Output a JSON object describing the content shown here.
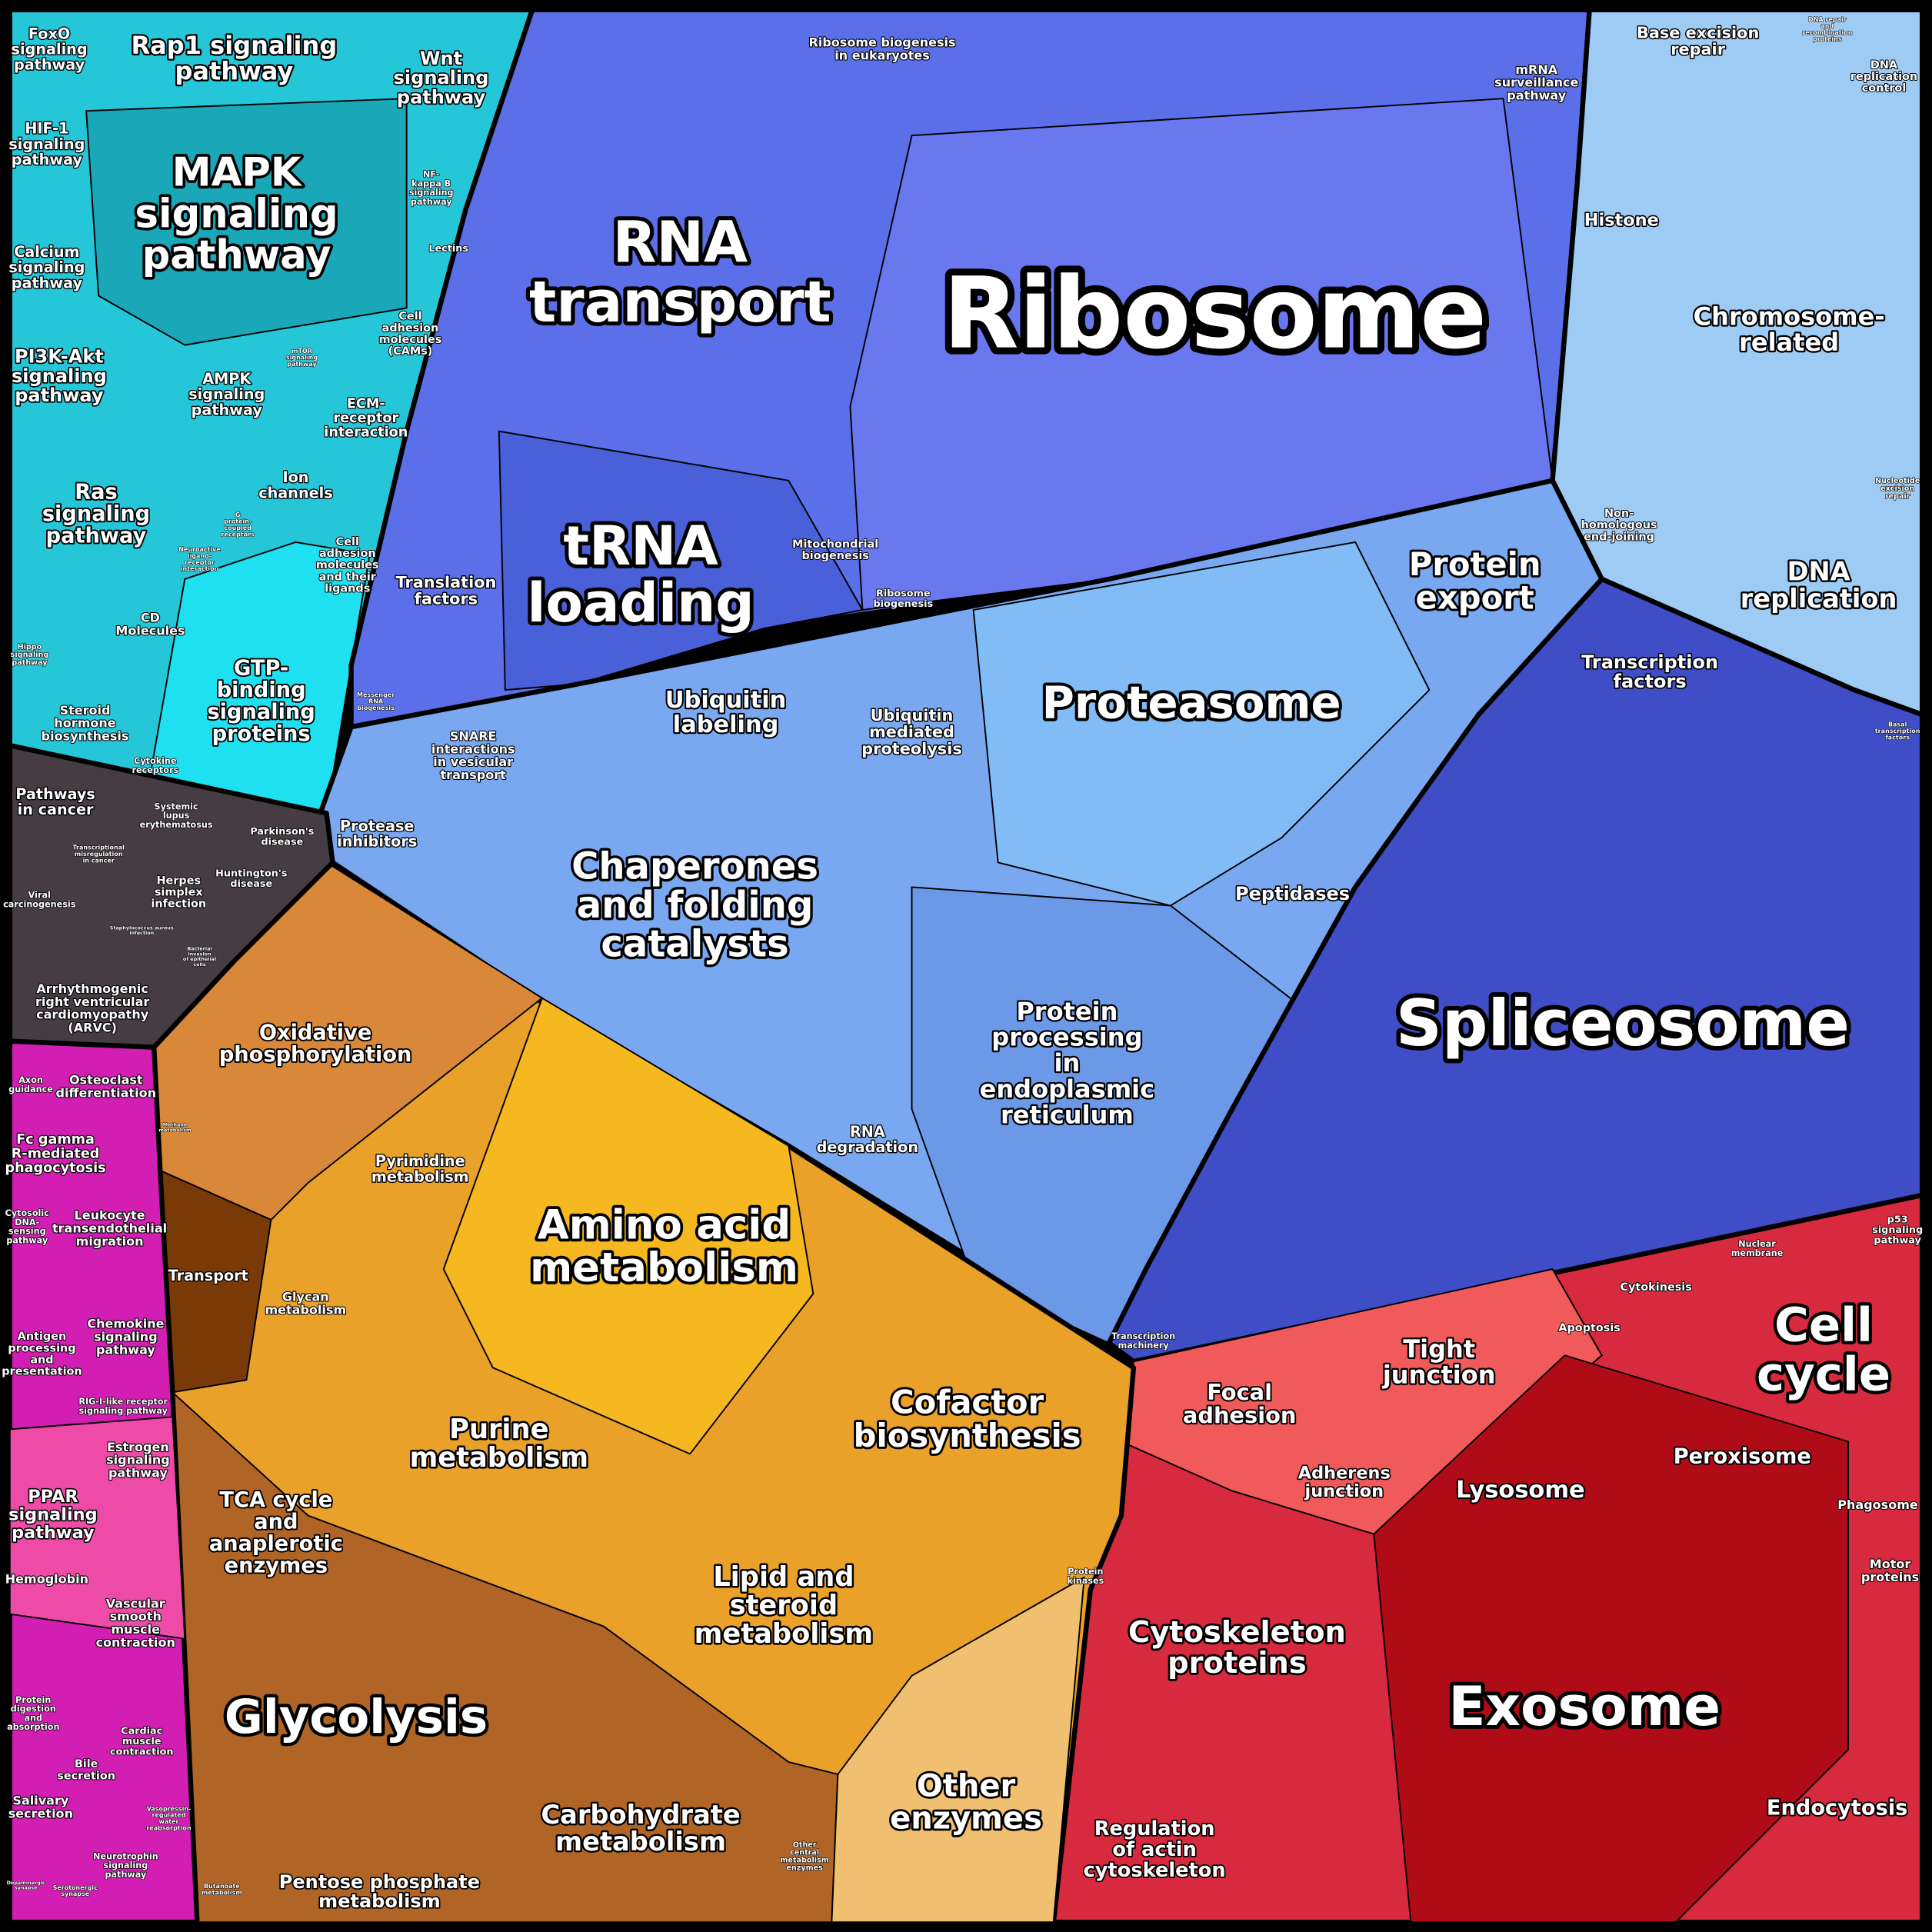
{
  "regions": [
    {
      "lines": [
        "FoxO",
        "signaling",
        "pathway"
      ]
    },
    {
      "lines": [
        "Rap1 signaling",
        "pathway"
      ]
    },
    {
      "lines": [
        "Wnt",
        "signaling",
        "pathway"
      ]
    },
    {
      "lines": [
        "HIF-1",
        "signaling",
        "pathway"
      ]
    },
    {
      "lines": [
        "MAPK",
        "signaling",
        "pathway"
      ]
    },
    {
      "lines": [
        "NF-",
        "kappa B",
        "signaling",
        "pathway"
      ]
    },
    {
      "lines": [
        "Calcium",
        "signaling",
        "pathway"
      ]
    },
    {
      "lines": [
        "Lectins"
      ]
    },
    {
      "lines": [
        "Cell",
        "adhesion",
        "molecules",
        "(CAMs)"
      ]
    },
    {
      "lines": [
        "PI3K-Akt",
        "signaling",
        "pathway"
      ]
    },
    {
      "lines": [
        "AMPK",
        "signaling",
        "pathway"
      ]
    },
    {
      "lines": [
        "mTOR",
        "signaling",
        "pathway"
      ]
    },
    {
      "lines": [
        "ECM-",
        "receptor",
        "interaction"
      ]
    },
    {
      "lines": [
        "Ras",
        "signaling",
        "pathway"
      ]
    },
    {
      "lines": [
        "Ion",
        "channels"
      ]
    },
    {
      "lines": [
        "G",
        "protein-",
        "coupled",
        "receptors"
      ]
    },
    {
      "lines": [
        "Neuroactive",
        "ligand-",
        "receptor",
        "interaction"
      ]
    },
    {
      "lines": [
        "Cell",
        "adhesion",
        "molecules",
        "and their",
        "ligands"
      ]
    },
    {
      "lines": [
        "CD",
        "Molecules"
      ]
    },
    {
      "lines": [
        "GTP-",
        "binding",
        "signaling",
        "proteins"
      ]
    },
    {
      "lines": [
        "Hippo",
        "signaling",
        "pathway"
      ]
    },
    {
      "lines": [
        "Steroid",
        "hormone",
        "biosynthesis"
      ]
    },
    {
      "lines": [
        "Cytokine",
        "receptors"
      ]
    },
    {
      "lines": [
        "Pathways",
        "in cancer"
      ]
    },
    {
      "lines": [
        "Systemic",
        "lupus",
        "erythematosus"
      ]
    },
    {
      "lines": [
        "Transcriptional",
        "misregulation",
        "in cancer"
      ]
    },
    {
      "lines": [
        "Parkinson's",
        "disease"
      ]
    },
    {
      "lines": [
        "Viral",
        "carcinogenesis"
      ]
    },
    {
      "lines": [
        "Herpes",
        "simplex",
        "infection"
      ]
    },
    {
      "lines": [
        "Huntington's",
        "disease"
      ]
    },
    {
      "lines": [
        "Staphylococcus aureus",
        "infection"
      ]
    },
    {
      "lines": [
        "Bacterial",
        "invasion",
        "of epithelial",
        "cells"
      ]
    },
    {
      "lines": [
        "Arrhythmogenic",
        "right ventricular",
        "cardiomyopathy",
        "(ARVC)"
      ]
    },
    {
      "lines": [
        "Axon",
        "guidance"
      ]
    },
    {
      "lines": [
        "Osteoclast",
        "differentiation"
      ]
    },
    {
      "lines": [
        "Fc gamma",
        "R-mediated",
        "phagocytosis"
      ]
    },
    {
      "lines": [
        "Cytosolic",
        "DNA-",
        "sensing",
        "pathway"
      ]
    },
    {
      "lines": [
        "Leukocyte",
        "transendothelial",
        "migration"
      ]
    },
    {
      "lines": [
        "Antigen",
        "processing",
        "and",
        "presentation"
      ]
    },
    {
      "lines": [
        "Chemokine",
        "signaling",
        "pathway"
      ]
    },
    {
      "lines": [
        "RIG-I-like receptor",
        "signaling pathway"
      ]
    },
    {
      "lines": [
        "Estrogen",
        "signaling",
        "pathway"
      ]
    },
    {
      "lines": [
        "PPAR",
        "signaling",
        "pathway"
      ]
    },
    {
      "lines": [
        "Hemoglobin"
      ]
    },
    {
      "lines": [
        "Vascular",
        "smooth",
        "muscle",
        "contraction"
      ]
    },
    {
      "lines": [
        "Protein",
        "digestion",
        "and",
        "absorption"
      ]
    },
    {
      "lines": [
        "Cardiac",
        "muscle",
        "contraction"
      ]
    },
    {
      "lines": [
        "Bile",
        "secretion"
      ]
    },
    {
      "lines": [
        "Salivary",
        "secretion"
      ]
    },
    {
      "lines": [
        "Vasopressin-",
        "regulated",
        "water",
        "reabsorption"
      ]
    },
    {
      "lines": [
        "Neurotrophin",
        "signaling",
        "pathway"
      ]
    },
    {
      "lines": [
        "Dopaminergic",
        "synapse"
      ]
    },
    {
      "lines": [
        "Serotonergic",
        "synapse"
      ]
    },
    {
      "lines": [
        "Ribosome biogenesis",
        "in eukaryotes"
      ]
    },
    {
      "lines": [
        "mRNA",
        "surveillance",
        "pathway"
      ]
    },
    {
      "lines": [
        "RNA",
        "transport"
      ]
    },
    {
      "lines": [
        "Ribosome"
      ]
    },
    {
      "lines": [
        "tRNA",
        "loading"
      ]
    },
    {
      "lines": [
        "Translation",
        "factors"
      ]
    },
    {
      "lines": [
        "Mitochondrial",
        "biogenesis"
      ]
    },
    {
      "lines": [
        "Ribosome",
        "biogenesis"
      ]
    },
    {
      "lines": [
        "Messenger",
        "RNA",
        "biogenesis"
      ]
    },
    {
      "lines": [
        "Base excision",
        "repair"
      ]
    },
    {
      "lines": [
        "DNA repair",
        "and",
        "recombination",
        "proteins"
      ]
    },
    {
      "lines": [
        "DNA",
        "replication",
        "control"
      ]
    },
    {
      "lines": [
        "Histone"
      ]
    },
    {
      "lines": [
        "Chromosome-",
        "related"
      ]
    },
    {
      "lines": [
        "Nucleotide",
        "excision",
        "repair"
      ]
    },
    {
      "lines": [
        "Non-",
        "homologous",
        "end-joining"
      ]
    },
    {
      "lines": [
        "DNA",
        "replication"
      ]
    },
    {
      "lines": [
        "Protein",
        "export"
      ]
    },
    {
      "lines": [
        "Transcription",
        "factors"
      ]
    },
    {
      "lines": [
        "Basal",
        "transcription",
        "factors"
      ]
    },
    {
      "lines": [
        "Ubiquitin",
        "labeling"
      ]
    },
    {
      "lines": [
        "Ubiquitin",
        "mediated",
        "proteolysis"
      ]
    },
    {
      "lines": [
        "Proteasome"
      ]
    },
    {
      "lines": [
        "SNARE",
        "interactions",
        "in vesicular",
        "transport"
      ]
    },
    {
      "lines": [
        "Protease",
        "inhibitors"
      ]
    },
    {
      "lines": [
        "Chaperones",
        "and folding",
        "catalysts"
      ]
    },
    {
      "lines": [
        "Peptidases"
      ]
    },
    {
      "lines": [
        "Spliceosome"
      ]
    },
    {
      "lines": [
        "Protein",
        "processing",
        "in",
        "endoplasmic",
        "reticulum"
      ]
    },
    {
      "lines": [
        "RNA",
        "degradation"
      ]
    },
    {
      "lines": [
        "Transcription",
        "machinery"
      ]
    },
    {
      "lines": [
        "Oxidative",
        "phosphorylation"
      ]
    },
    {
      "lines": [
        "Methane",
        "metabolism"
      ]
    },
    {
      "lines": [
        "Pyrimidine",
        "metabolism"
      ]
    },
    {
      "lines": [
        "Amino acid",
        "metabolism"
      ]
    },
    {
      "lines": [
        "Transport"
      ]
    },
    {
      "lines": [
        "Glycan",
        "metabolism"
      ]
    },
    {
      "lines": [
        "Cofactor",
        "biosynthesis"
      ]
    },
    {
      "lines": [
        "Purine",
        "metabolism"
      ]
    },
    {
      "lines": [
        "TCA cycle",
        "and",
        "anaplerotic",
        "enzymes"
      ]
    },
    {
      "lines": [
        "Protein",
        "kinases"
      ]
    },
    {
      "lines": [
        "Lipid and",
        "steroid",
        "metabolism"
      ]
    },
    {
      "lines": [
        "Glycolysis"
      ]
    },
    {
      "lines": [
        "Other",
        "enzymes"
      ]
    },
    {
      "lines": [
        "Carbohydrate",
        "metabolism"
      ]
    },
    {
      "lines": [
        "Other",
        "central",
        "metabolism",
        "enzymes"
      ]
    },
    {
      "lines": [
        "Pentose phosphate",
        "metabolism"
      ]
    },
    {
      "lines": [
        "Butanoate",
        "metabolism"
      ]
    },
    {
      "lines": [
        "p53",
        "signaling",
        "pathway"
      ]
    },
    {
      "lines": [
        "Nuclear",
        "membrane"
      ]
    },
    {
      "lines": [
        "Cytokinesis"
      ]
    },
    {
      "lines": [
        "Cell",
        "cycle"
      ]
    },
    {
      "lines": [
        "Apoptosis"
      ]
    },
    {
      "lines": [
        "Tight",
        "junction"
      ]
    },
    {
      "lines": [
        "Focal",
        "adhesion"
      ]
    },
    {
      "lines": [
        "Adherens",
        "junction"
      ]
    },
    {
      "lines": [
        "Lysosome"
      ]
    },
    {
      "lines": [
        "Peroxisome"
      ]
    },
    {
      "lines": [
        "Phagosome"
      ]
    },
    {
      "lines": [
        "Motor",
        "proteins"
      ]
    },
    {
      "lines": [
        "Cytoskeleton",
        "proteins"
      ]
    },
    {
      "lines": [
        "Exosome"
      ]
    },
    {
      "lines": [
        "Endocytosis"
      ]
    },
    {
      "lines": [
        "Regulation",
        "of actin",
        "cytoskeleton"
      ]
    }
  ]
}
